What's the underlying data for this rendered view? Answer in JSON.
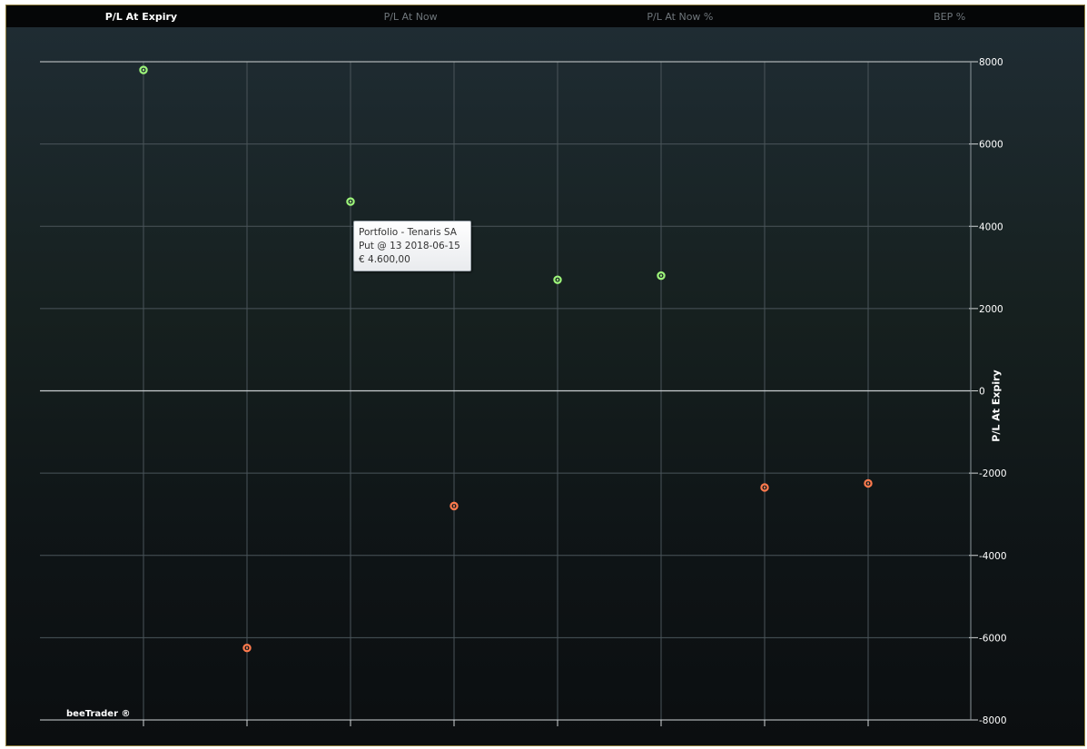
{
  "tabs": [
    {
      "label": "P/L At Expiry",
      "active": true
    },
    {
      "label": "P/L At Now",
      "active": false
    },
    {
      "label": "P/L At Now %",
      "active": false
    },
    {
      "label": "BEP %",
      "active": false
    }
  ],
  "tooltip": {
    "line1": "Portfolio - Tenaris SA",
    "line2": "Put @ 13 2018-06-15",
    "line3": "€ 4.600,00"
  },
  "watermark": "beeTrader ®",
  "colors": {
    "positive": "#9df57a",
    "negative": "#ff7a4d",
    "grid": "#4a545a",
    "zero_line": "#c9cdd0",
    "axis_text": "#ffffff"
  },
  "chart_data": {
    "type": "scatter",
    "ylabel": "P/L At Expiry",
    "xlabel": "",
    "title": "",
    "y_ticks": [
      8000,
      6000,
      4000,
      2000,
      0,
      -2000,
      -4000,
      -6000,
      -8000
    ],
    "ylim": [
      -8000,
      8000
    ],
    "points": [
      {
        "x": 1,
        "y": 7800
      },
      {
        "x": 2,
        "y": -6250
      },
      {
        "x": 3,
        "y": 4600
      },
      {
        "x": 4,
        "y": -2800
      },
      {
        "x": 5,
        "y": 2700
      },
      {
        "x": 6,
        "y": 2800
      },
      {
        "x": 7,
        "y": -2350
      },
      {
        "x": 8,
        "y": -2250
      }
    ],
    "grid": true
  }
}
